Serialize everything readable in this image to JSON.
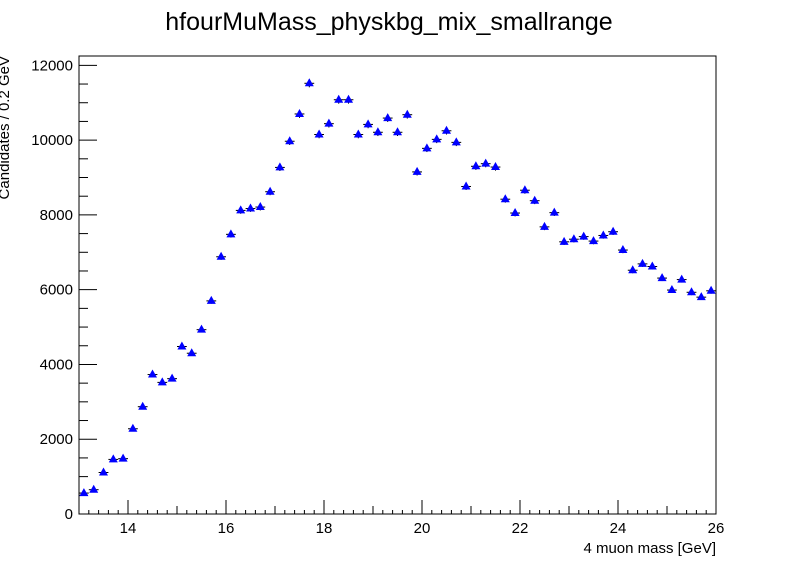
{
  "chart_data": {
    "type": "scatter",
    "title": "hfourMuMass_physkbg_mix_smallrange",
    "xlabel": "4 muon mass [GeV]",
    "ylabel": "Candidates / 0.2 GeV",
    "xlim": [
      13,
      26
    ],
    "ylim": [
      0,
      12250
    ],
    "xticks": [
      "14",
      "16",
      "18",
      "20",
      "22",
      "24",
      "26"
    ],
    "yticks": [
      "0",
      "2000",
      "4000",
      "6000",
      "8000",
      "10000",
      "12000"
    ],
    "grid": false,
    "marker_color": "#0000ff",
    "x": [
      13.1,
      13.3,
      13.5,
      13.7,
      13.9,
      14.1,
      14.3,
      14.5,
      14.7,
      14.9,
      15.1,
      15.3,
      15.5,
      15.7,
      15.9,
      16.1,
      16.3,
      16.5,
      16.7,
      16.9,
      17.1,
      17.3,
      17.5,
      17.7,
      17.9,
      18.1,
      18.3,
      18.5,
      18.7,
      18.9,
      19.1,
      19.3,
      19.5,
      19.7,
      19.9,
      20.1,
      20.3,
      20.5,
      20.7,
      20.9,
      21.1,
      21.3,
      21.5,
      21.7,
      21.9,
      22.1,
      22.3,
      22.5,
      22.7,
      22.9,
      23.1,
      23.3,
      23.5,
      23.7,
      23.9,
      24.1,
      24.3,
      24.5,
      24.7,
      24.9,
      25.1,
      25.3,
      25.5,
      25.7,
      25.9
    ],
    "y": [
      560,
      650,
      1110,
      1460,
      1480,
      2280,
      2870,
      3730,
      3520,
      3620,
      4480,
      4300,
      4930,
      5700,
      6880,
      7480,
      8120,
      8170,
      8210,
      8620,
      9270,
      9970,
      10700,
      11520,
      10150,
      10440,
      11080,
      11080,
      10150,
      10420,
      10210,
      10590,
      10210,
      10680,
      9150,
      9780,
      10020,
      10250,
      9940,
      8760,
      9300,
      9370,
      9280,
      8420,
      8050,
      8660,
      8380,
      7680,
      8060,
      7280,
      7350,
      7420,
      7300,
      7450,
      7550,
      7060,
      6520,
      6690,
      6620,
      6310,
      5990,
      6270,
      5930,
      5800,
      5970
    ]
  }
}
